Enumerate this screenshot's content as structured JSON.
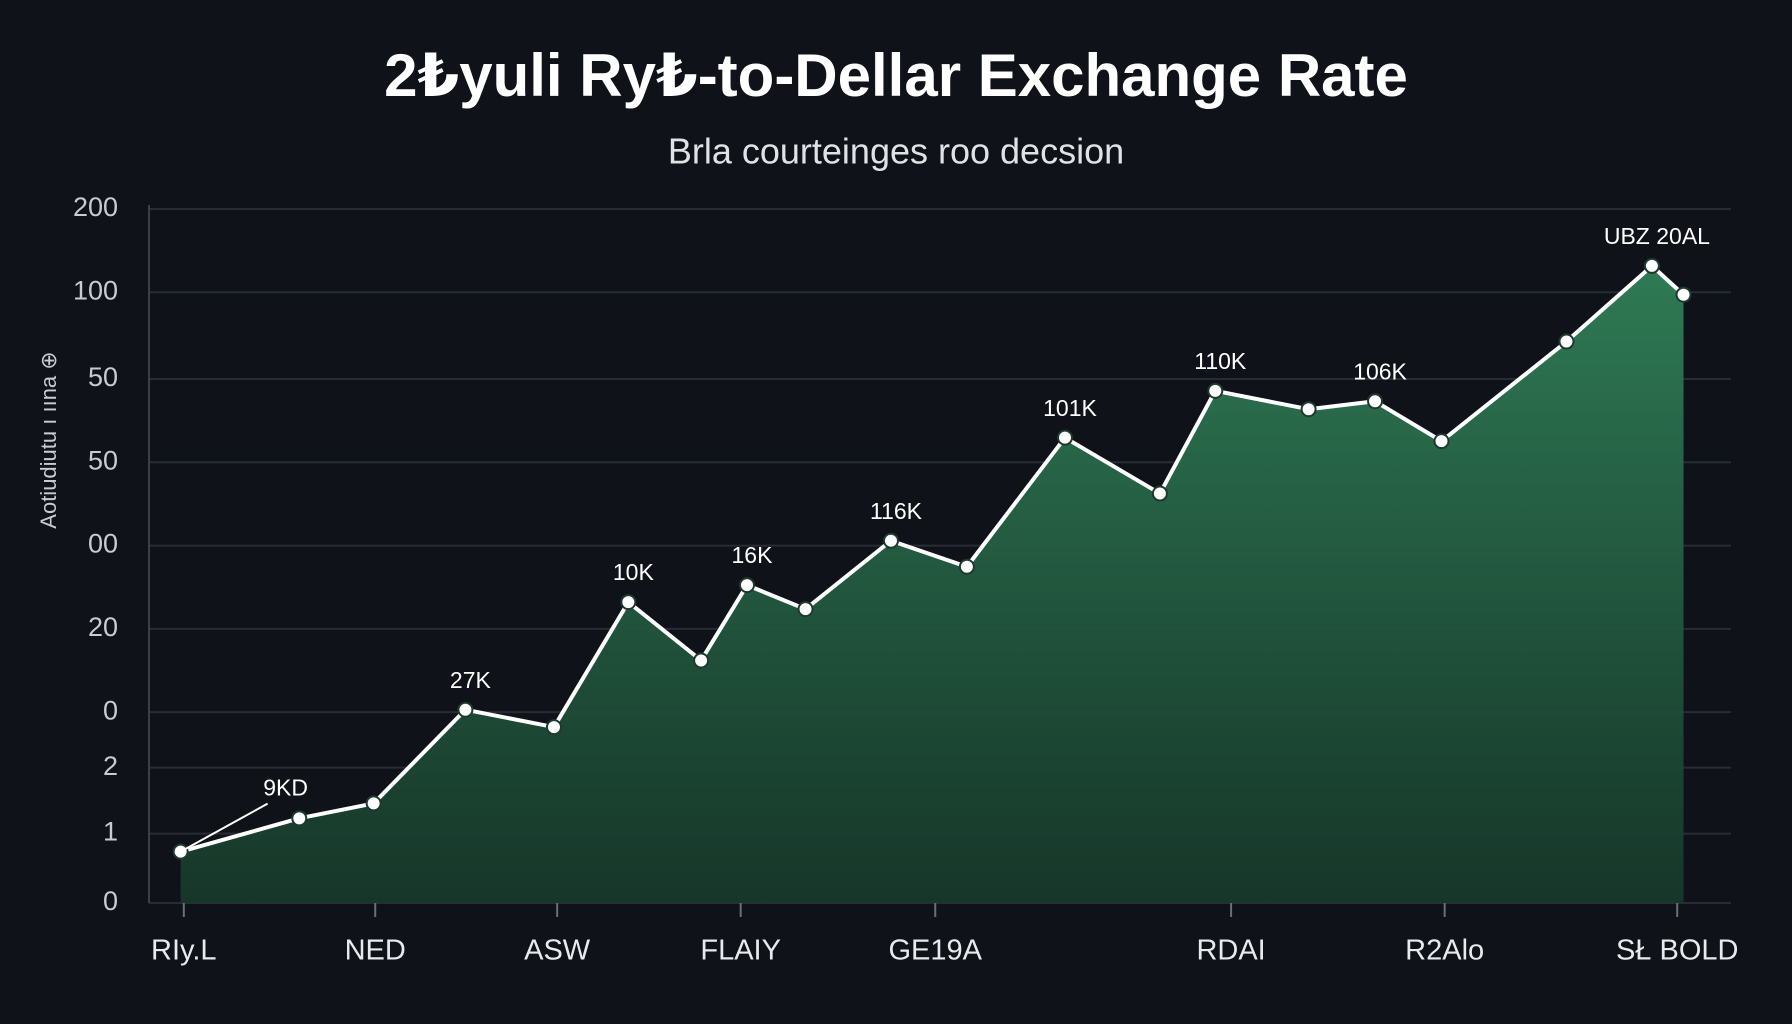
{
  "chart_data": {
    "type": "area",
    "title": "2₺yuli Ry₺-to-Dellar Exchange Rate",
    "subtitle": "Brla courteinges roo decsion",
    "ylabel": "Aotiudiutu ı ıına ⊕",
    "x": [
      2.0,
      9.5,
      14.2,
      20.0,
      25.6,
      30.3,
      34.9,
      37.8,
      41.5,
      46.9,
      51.7,
      57.9,
      63.9,
      67.4,
      73.3,
      77.5,
      81.7,
      89.6,
      95.0,
      97.0
    ],
    "values": [
      14.8,
      24.4,
      28.7,
      55.7,
      50.7,
      86.7,
      69.9,
      91.6,
      84.7,
      104.4,
      96.9,
      134.1,
      118.0,
      147.6,
      142.3,
      144.6,
      133.1,
      161.8,
      183.6,
      175.3
    ],
    "color": "#ffffff",
    "fill_color": "#2f7a55",
    "xlim": [
      0,
      100
    ],
    "xticks": [
      {
        "value": 2.2,
        "label": "RIy.L"
      },
      {
        "value": 14.3,
        "label": "NED"
      },
      {
        "value": 25.8,
        "label": "ASW"
      },
      {
        "value": 37.4,
        "label": "FLAIY"
      },
      {
        "value": 49.7,
        "label": "GE19A"
      },
      {
        "value": 68.4,
        "label": "RDAI"
      },
      {
        "value": 81.9,
        "label": "R2Alo"
      },
      {
        "value": 96.6,
        "label": "SŁ BOLD"
      }
    ],
    "ylim": [
      0,
      200
    ],
    "yticks": [
      200,
      {
        "value": 176,
        "label": "100"
      },
      {
        "value": 151,
        "label": "50"
      },
      {
        "value": 127,
        "label": "50"
      },
      {
        "value": 103,
        "label": "00"
      },
      {
        "value": 79,
        "label": "20"
      },
      {
        "value": 55,
        "label": "0"
      },
      {
        "value": 39,
        "label": "2"
      },
      {
        "value": 20,
        "label": "1"
      },
      0
    ],
    "grid": true,
    "annotations": [
      {
        "text": "9KD",
        "point": 0
      },
      {
        "text": "27K",
        "point": 3
      },
      {
        "text": "10K",
        "point": 5
      },
      {
        "text": "16K",
        "point": 7
      },
      {
        "text": "116K",
        "point": 9
      },
      {
        "text": "101K",
        "point": 11
      },
      {
        "text": "110K",
        "point": 13
      },
      {
        "text": "106K",
        "point": 15
      },
      {
        "text": "UBZ 20AL",
        "point": 18
      }
    ]
  }
}
